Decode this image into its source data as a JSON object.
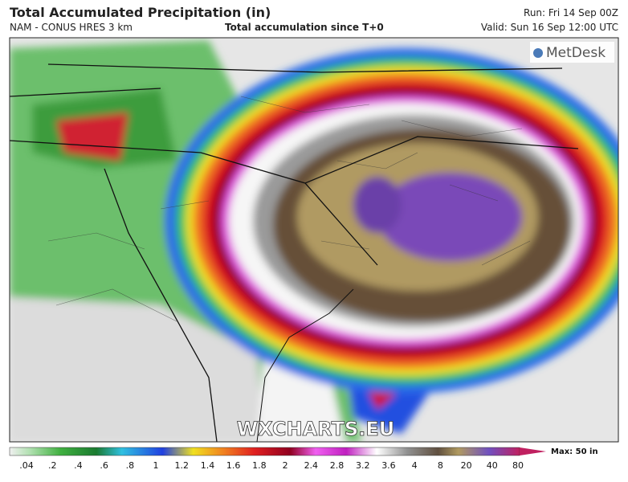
{
  "header": {
    "title": "Total Accumulated Precipitation (in)",
    "model": "NAM - CONUS HRES 3 km",
    "subtitle": "Total accumulation since T+0",
    "run": "Run: Fri 14 Sep 00Z",
    "valid": "Valid: Sun 16 Sep 12:00 UTC"
  },
  "logo": "MetDesk",
  "watermark": "WXCHARTS.EU",
  "legend": {
    "labels": [
      ".04",
      ".2",
      ".4",
      ".6",
      ".8",
      "1",
      "1.2",
      "1.4",
      "1.6",
      "1.8",
      "2",
      "2.4",
      "2.8",
      "3.2",
      "3.6",
      "4",
      "8",
      "20",
      "40",
      "80"
    ],
    "max": "Max: 50 in"
  }
}
